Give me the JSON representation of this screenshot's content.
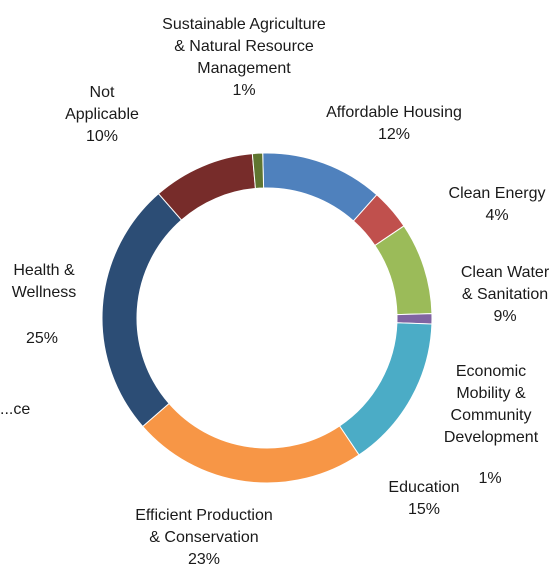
{
  "chart_data": {
    "type": "pie",
    "donut": true,
    "legend": "none",
    "slices": [
      {
        "name_lines": [
          "Affordable Housing"
        ],
        "value_label": "12%",
        "value": 12,
        "color": "#4f81bd"
      },
      {
        "name_lines": [
          "Clean Energy"
        ],
        "value_label": "4%",
        "value": 4,
        "color": "#c0504d"
      },
      {
        "name_lines": [
          "Clean Water",
          "& Sanitation"
        ],
        "value_label": "9%",
        "value": 9,
        "color": "#9bbb59"
      },
      {
        "name_lines": [
          "Economic",
          "Mobility &",
          "Community",
          "Development"
        ],
        "value_label": "1%",
        "value": 1,
        "color": "#8064a2"
      },
      {
        "name_lines": [
          "Education"
        ],
        "value_label": "15%",
        "value": 15,
        "color": "#4bacc6"
      },
      {
        "name_lines": [
          "Efficient Production",
          "& Conservation"
        ],
        "value_label": "23%",
        "value": 23,
        "color": "#f79646"
      },
      {
        "name_lines": [
          "...ce"
        ],
        "value_label": "",
        "value": 0,
        "color": "#ffffff"
      },
      {
        "name_lines": [
          "Health &",
          "Wellness"
        ],
        "value_label": "25%",
        "value": 25,
        "color": "#2c4d75"
      },
      {
        "name_lines": [
          "Not",
          "Applicable"
        ],
        "value_label": "10%",
        "value": 10,
        "color": "#772c2a"
      },
      {
        "name_lines": [
          "Sustainable Agriculture",
          "& Natural Resource",
          "Management"
        ],
        "value_label": "1%",
        "value": 1,
        "color": "#5f7530"
      }
    ]
  }
}
